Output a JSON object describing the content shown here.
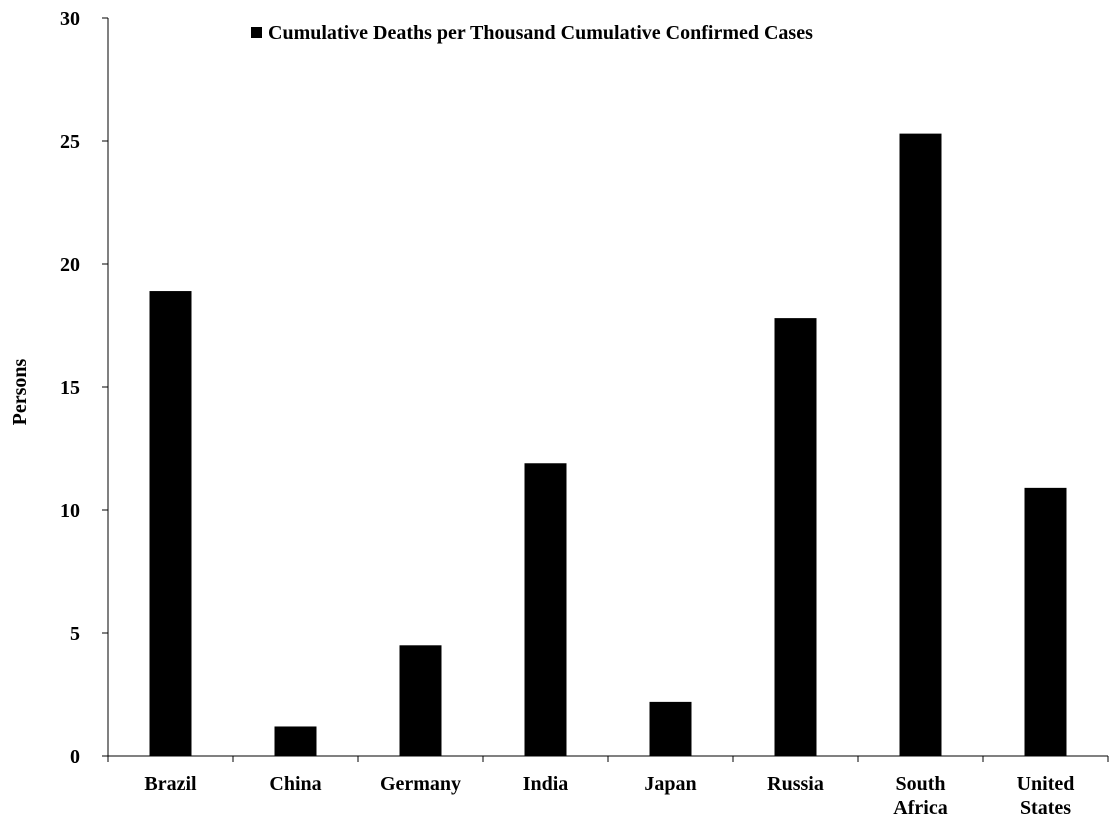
{
  "chart_data": {
    "type": "bar",
    "categories": [
      [
        "Brazil"
      ],
      [
        "China"
      ],
      [
        "Germany"
      ],
      [
        "India"
      ],
      [
        "Japan"
      ],
      [
        "Russia"
      ],
      [
        "South",
        "Africa"
      ],
      [
        "United",
        "States"
      ]
    ],
    "series": [
      {
        "name": "Cumulative Deaths per Thousand Cumulative Confirmed Cases",
        "values": [
          18.9,
          1.2,
          4.5,
          11.9,
          2.2,
          17.8,
          25.3,
          10.9
        ],
        "color": "#000000"
      }
    ],
    "ylabel": "Persons",
    "ylim": [
      0,
      30
    ],
    "yticks": [
      0,
      5,
      10,
      15,
      20,
      25,
      30
    ],
    "grid": false,
    "legend_position": "top-center"
  }
}
